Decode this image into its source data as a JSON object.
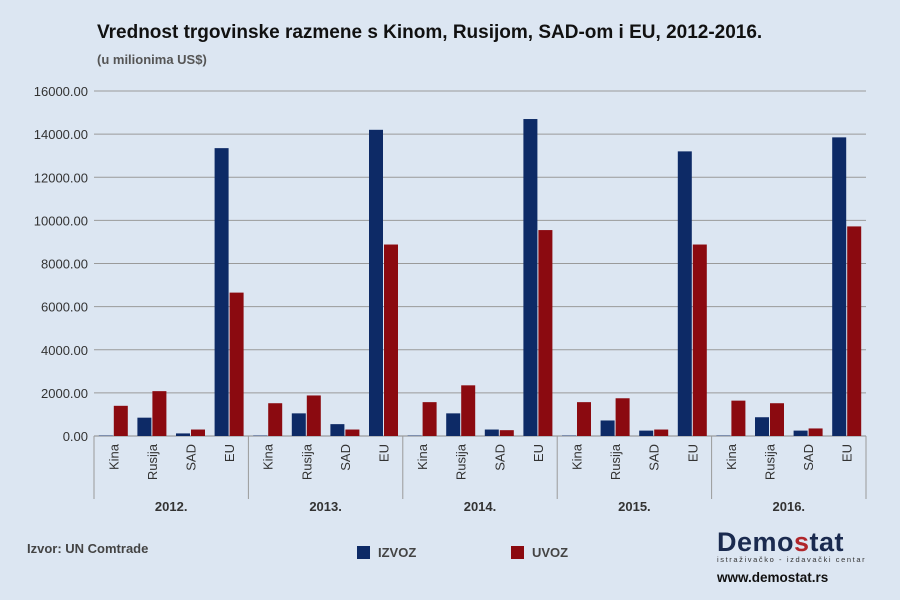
{
  "chart_data": {
    "type": "bar",
    "title": "Vrednost trgovinske razmene s Kinom, Rusijom, SAD-om i EU, 2012-2016.",
    "subtitle": "(u milionima US$)",
    "groups": [
      "2012.",
      "2013.",
      "2014.",
      "2015.",
      "2016."
    ],
    "categories": [
      "Kina",
      "Rusija",
      "SAD",
      "EU"
    ],
    "ylim": [
      0,
      16000
    ],
    "yticks": [
      "0.00",
      "2000.00",
      "4000.00",
      "6000.00",
      "8000.00",
      "10000.00",
      "12000.00",
      "14000.00",
      "16000.00"
    ],
    "grid": true,
    "legend_position": "bottom",
    "series": [
      {
        "name": "IZVOZ",
        "color": "#0d2a66",
        "values": [
          [
            20,
            850,
            120,
            13350
          ],
          [
            20,
            1050,
            550,
            14200
          ],
          [
            20,
            1050,
            300,
            14700
          ],
          [
            20,
            720,
            250,
            13200
          ],
          [
            20,
            870,
            250,
            13850
          ]
        ]
      },
      {
        "name": "UVOZ",
        "color": "#8b0a10",
        "values": [
          [
            1400,
            2080,
            300,
            6650
          ],
          [
            1520,
            1880,
            300,
            8880
          ],
          [
            1570,
            2350,
            270,
            9550
          ],
          [
            1570,
            1750,
            300,
            8880
          ],
          [
            1640,
            1520,
            350,
            9720
          ]
        ]
      }
    ]
  },
  "footer": {
    "source": "Izvor: UN Comtrade"
  },
  "logo": {
    "name_part1": "Demo",
    "name_part2": "s",
    "name_part3": "tat",
    "tagline": "istraživačko - izdavački centar",
    "url": "www.demostat.rs"
  }
}
